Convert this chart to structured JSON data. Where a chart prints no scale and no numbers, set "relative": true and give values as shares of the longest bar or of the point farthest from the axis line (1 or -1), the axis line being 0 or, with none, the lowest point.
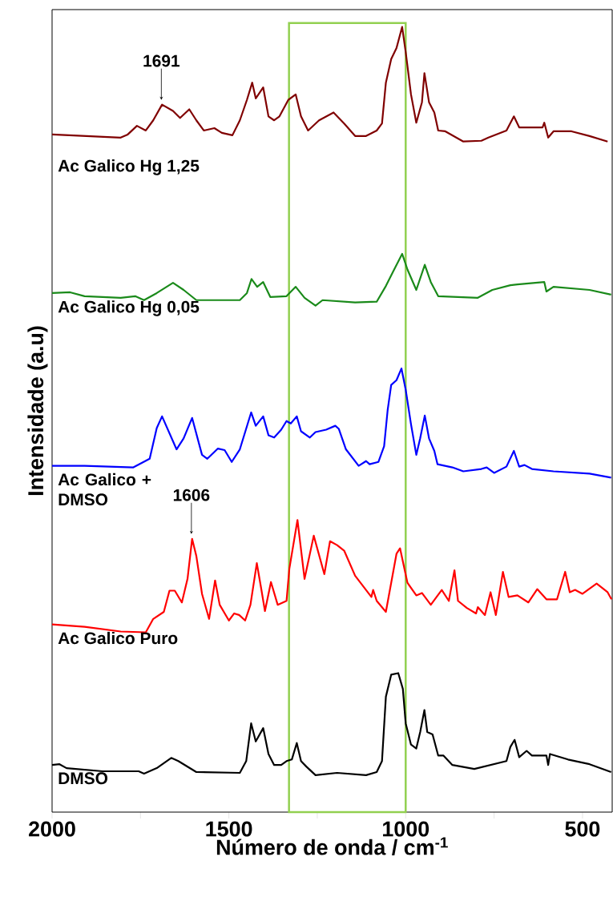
{
  "chart_data": {
    "type": "line",
    "relative": true,
    "xlabel": "Número de onda / cm$^{-1}$",
    "ylabel": "Intensidade (a.u)",
    "xlim": [
      2000,
      416
    ],
    "xticks": [
      2000,
      {
        "value": 1750,
        "label": null
      },
      1500,
      {
        "value": 1250,
        "label": null
      },
      1000,
      {
        "value": 750,
        "label": null
      },
      500
    ],
    "bands": [
      {
        "axis": "x",
        "from": 1330,
        "to": 1000,
        "color": "#92d050"
      }
    ],
    "annotations": [
      {
        "text": "1691",
        "x": 1691,
        "y": 0.901
      },
      {
        "text": "1606",
        "x": 1606,
        "y": 0.348
      }
    ],
    "series": [
      {
        "name": "Ac Galico Hg 1,25",
        "color": "#800000",
        "x": [
          2000,
          1806,
          1786,
          1760,
          1735,
          1714,
          1689,
          1658,
          1638,
          1612,
          1592,
          1571,
          1541,
          1520,
          1490,
          1469,
          1449,
          1434,
          1424,
          1403,
          1388,
          1372,
          1357,
          1332,
          1311,
          1296,
          1276,
          1245,
          1204,
          1174,
          1143,
          1112,
          1082,
          1067,
          1056,
          1041,
          1026,
          1010,
          1000,
          985,
          970,
          954,
          947,
          934,
          919,
          908,
          888,
          837,
          786,
          766,
          715,
          694,
          679,
          664,
          613,
          608,
          597,
          582,
          531,
          480,
          429
        ],
        "values": [
          0.863,
          0.859,
          0.863,
          0.874,
          0.868,
          0.881,
          0.901,
          0.893,
          0.884,
          0.895,
          0.881,
          0.868,
          0.871,
          0.865,
          0.862,
          0.881,
          0.907,
          0.929,
          0.909,
          0.923,
          0.886,
          0.881,
          0.886,
          0.907,
          0.914,
          0.886,
          0.868,
          0.881,
          0.891,
          0.877,
          0.861,
          0.861,
          0.868,
          0.877,
          0.929,
          0.959,
          0.973,
          1.0,
          0.968,
          0.914,
          0.878,
          0.904,
          0.941,
          0.904,
          0.891,
          0.868,
          0.867,
          0.854,
          0.855,
          0.859,
          0.868,
          0.886,
          0.872,
          0.872,
          0.872,
          0.878,
          0.859,
          0.867,
          0.867,
          0.861,
          0.854
        ]
      },
      {
        "name": "Ac Galico Hg 0,05",
        "color": "#1a8a1a",
        "x": [
          2000,
          1949,
          1908,
          1806,
          1765,
          1740,
          1704,
          1658,
          1628,
          1592,
          1551,
          1469,
          1449,
          1436,
          1420,
          1403,
          1383,
          1337,
          1311,
          1286,
          1255,
          1235,
          1143,
          1082,
          1056,
          1036,
          1010,
          995,
          970,
          946,
          929,
          908,
          796,
          755,
          704,
          684,
          608,
          602,
          582,
          480,
          419
        ],
        "values": [
          0.661,
          0.662,
          0.657,
          0.655,
          0.657,
          0.652,
          0.661,
          0.674,
          0.665,
          0.652,
          0.652,
          0.652,
          0.661,
          0.679,
          0.669,
          0.675,
          0.656,
          0.657,
          0.669,
          0.655,
          0.645,
          0.652,
          0.649,
          0.65,
          0.67,
          0.688,
          0.711,
          0.691,
          0.665,
          0.697,
          0.675,
          0.657,
          0.655,
          0.665,
          0.671,
          0.672,
          0.675,
          0.663,
          0.669,
          0.665,
          0.659
        ]
      },
      {
        "name": "Ac Galico + DMSO",
        "color": "#0000ff",
        "x": [
          2000,
          1908,
          1770,
          1724,
          1704,
          1689,
          1648,
          1628,
          1604,
          1576,
          1561,
          1531,
          1512,
          1492,
          1469,
          1437,
          1424,
          1403,
          1388,
          1372,
          1352,
          1337,
          1325,
          1308,
          1296,
          1271,
          1255,
          1225,
          1199,
          1189,
          1169,
          1133,
          1112,
          1102,
          1077,
          1061,
          1051,
          1041,
          1026,
          1012,
          1000,
          985,
          970,
          959,
          946,
          934,
          919,
          910,
          868,
          837,
          786,
          771,
          750,
          715,
          694,
          679,
          664,
          643,
          582,
          480,
          419
        ],
        "values": [
          0.441,
          0.441,
          0.439,
          0.45,
          0.489,
          0.504,
          0.462,
          0.476,
          0.502,
          0.455,
          0.45,
          0.463,
          0.461,
          0.446,
          0.462,
          0.509,
          0.492,
          0.504,
          0.48,
          0.477,
          0.487,
          0.498,
          0.495,
          0.504,
          0.485,
          0.477,
          0.484,
          0.487,
          0.492,
          0.488,
          0.462,
          0.441,
          0.447,
          0.443,
          0.446,
          0.466,
          0.512,
          0.544,
          0.55,
          0.565,
          0.538,
          0.494,
          0.455,
          0.476,
          0.505,
          0.476,
          0.46,
          0.443,
          0.439,
          0.434,
          0.437,
          0.439,
          0.432,
          0.44,
          0.46,
          0.44,
          0.442,
          0.437,
          0.434,
          0.431,
          0.426
        ]
      },
      {
        "name": "Ac Galico Puro",
        "color": "#ff0000",
        "x": [
          2000,
          1908,
          1806,
          1735,
          1714,
          1684,
          1668,
          1653,
          1633,
          1617,
          1604,
          1592,
          1576,
          1556,
          1539,
          1526,
          1500,
          1485,
          1471,
          1454,
          1439,
          1421,
          1408,
          1398,
          1381,
          1362,
          1337,
          1329,
          1306,
          1286,
          1260,
          1230,
          1214,
          1194,
          1174,
          1143,
          1097,
          1092,
          1082,
          1056,
          1026,
          1016,
          995,
          970,
          954,
          929,
          898,
          878,
          862,
          852,
          827,
          801,
          796,
          776,
          760,
          745,
          725,
          709,
          684,
          653,
          628,
          602,
          572,
          549,
          536,
          521,
          500,
          460,
          429,
          418
        ],
        "values": [
          0.239,
          0.236,
          0.23,
          0.229,
          0.246,
          0.255,
          0.282,
          0.282,
          0.267,
          0.297,
          0.348,
          0.326,
          0.278,
          0.246,
          0.295,
          0.264,
          0.244,
          0.253,
          0.251,
          0.244,
          0.264,
          0.317,
          0.283,
          0.256,
          0.293,
          0.264,
          0.269,
          0.31,
          0.372,
          0.297,
          0.352,
          0.303,
          0.345,
          0.34,
          0.333,
          0.301,
          0.274,
          0.283,
          0.269,
          0.255,
          0.329,
          0.336,
          0.292,
          0.276,
          0.279,
          0.264,
          0.283,
          0.269,
          0.308,
          0.269,
          0.26,
          0.253,
          0.261,
          0.251,
          0.28,
          0.251,
          0.306,
          0.274,
          0.276,
          0.267,
          0.284,
          0.271,
          0.271,
          0.306,
          0.28,
          0.283,
          0.278,
          0.291,
          0.28,
          0.271
        ]
      },
      {
        "name": "DMSO",
        "color": "#000000",
        "x": [
          2000,
          1979,
          1959,
          1857,
          1755,
          1740,
          1704,
          1663,
          1643,
          1592,
          1469,
          1451,
          1437,
          1424,
          1403,
          1388,
          1372,
          1352,
          1337,
          1322,
          1308,
          1296,
          1281,
          1255,
          1194,
          1112,
          1082,
          1067,
          1056,
          1041,
          1021,
          1008,
          1000,
          985,
          970,
          959,
          947,
          939,
          924,
          908,
          893,
          868,
          806,
          715,
          704,
          692,
          679,
          658,
          643,
          602,
          597,
          592,
          541,
          480,
          419
        ],
        "values": [
          0.06,
          0.061,
          0.056,
          0.052,
          0.052,
          0.049,
          0.056,
          0.069,
          0.065,
          0.051,
          0.05,
          0.065,
          0.113,
          0.09,
          0.107,
          0.074,
          0.06,
          0.06,
          0.065,
          0.067,
          0.088,
          0.065,
          0.058,
          0.047,
          0.05,
          0.047,
          0.051,
          0.065,
          0.147,
          0.175,
          0.177,
          0.157,
          0.113,
          0.086,
          0.081,
          0.102,
          0.13,
          0.102,
          0.099,
          0.072,
          0.072,
          0.06,
          0.055,
          0.065,
          0.083,
          0.092,
          0.07,
          0.078,
          0.072,
          0.072,
          0.06,
          0.074,
          0.067,
          0.061,
          0.051
        ]
      }
    ]
  }
}
